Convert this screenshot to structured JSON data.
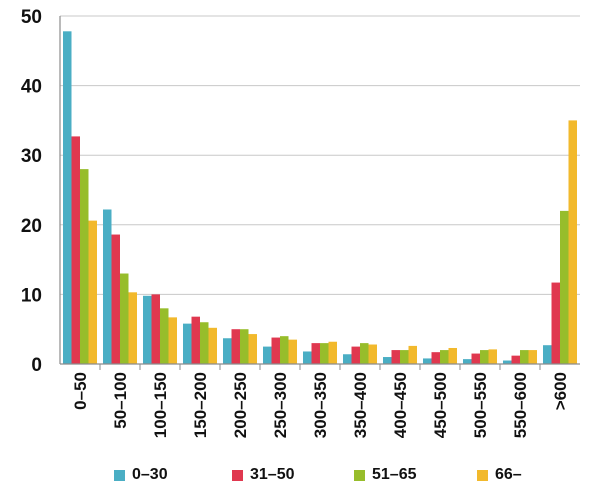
{
  "chart_data": {
    "type": "bar",
    "categories": [
      "0–50",
      "50–100",
      "100–150",
      "150–200",
      "200–250",
      "250–300",
      "300–350",
      "350–400",
      "400–450",
      "450–500",
      "500–550",
      "550–600",
      ">600"
    ],
    "series": [
      {
        "name": "0–30",
        "color": "#4aaec4",
        "values": [
          47.8,
          22.2,
          9.8,
          5.8,
          3.7,
          2.5,
          1.8,
          1.4,
          1.0,
          0.8,
          0.7,
          0.5,
          2.7
        ]
      },
      {
        "name": "31–50",
        "color": "#e0384f",
        "values": [
          32.7,
          18.6,
          10.0,
          6.8,
          5.0,
          3.8,
          3.0,
          2.5,
          2.0,
          1.7,
          1.5,
          1.2,
          11.7
        ]
      },
      {
        "name": "51–65",
        "color": "#97bd2b",
        "values": [
          28.0,
          13.0,
          8.0,
          6.0,
          5.0,
          4.0,
          3.0,
          3.0,
          2.0,
          2.0,
          2.0,
          2.0,
          22.0
        ]
      },
      {
        "name": "66–",
        "color": "#f2b92c",
        "values": [
          20.6,
          10.3,
          6.7,
          5.2,
          4.3,
          3.5,
          3.2,
          2.8,
          2.6,
          2.3,
          2.1,
          2.0,
          35.0
        ]
      }
    ],
    "yticks": [
      "0",
      "10",
      "20",
      "30",
      "40",
      "50"
    ],
    "ylim": [
      0,
      50
    ],
    "grid": true,
    "legend_position": "bottom",
    "title": "",
    "xlabel": "",
    "ylabel": ""
  }
}
